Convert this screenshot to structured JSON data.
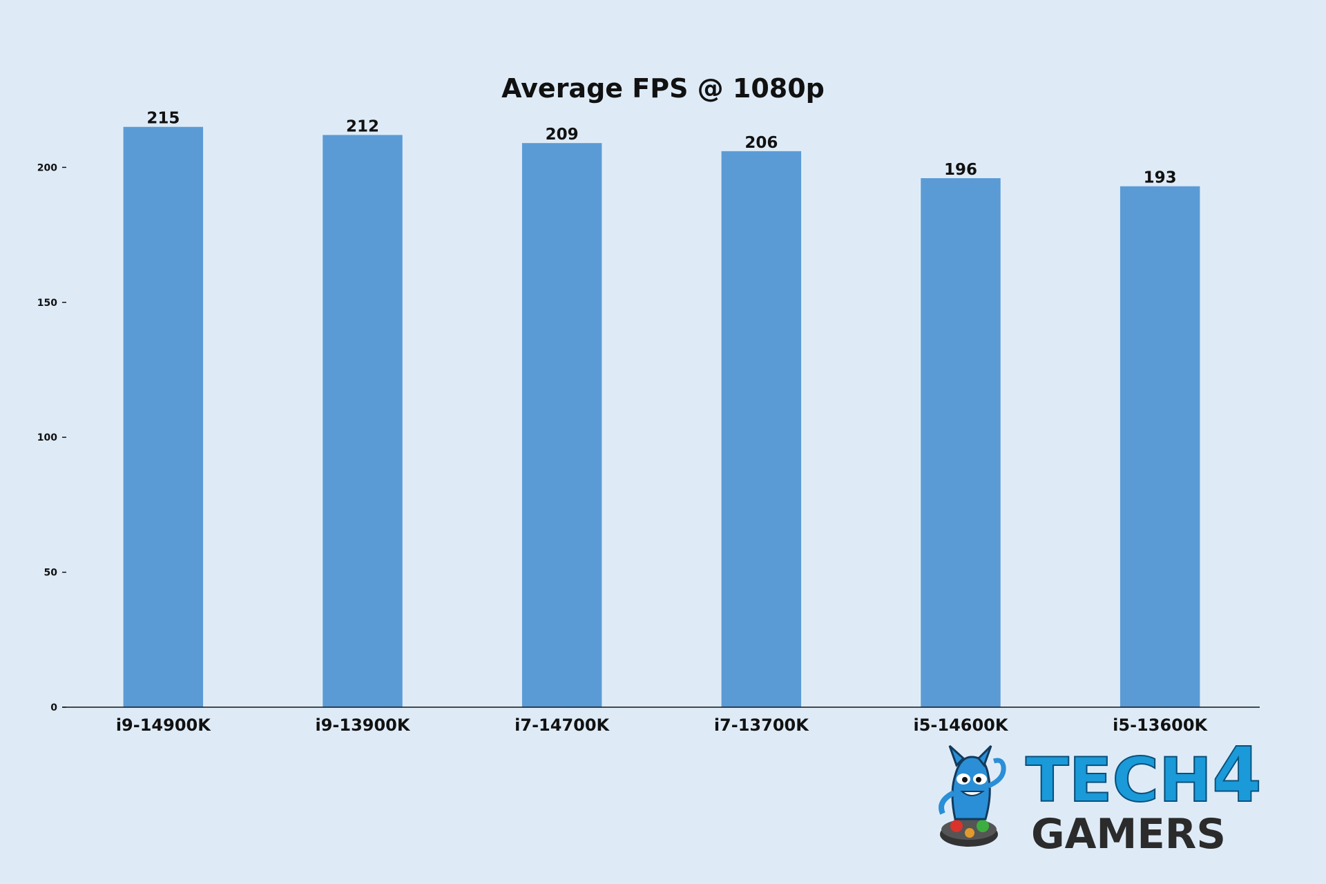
{
  "chart_data": {
    "type": "bar",
    "title": "Average FPS @ 1080p",
    "xlabel": "",
    "ylabel": "",
    "categories": [
      "i9-14900K",
      "i9-13900K",
      "i7-14700K",
      "i7-13700K",
      "i5-14600K",
      "i5-13600K"
    ],
    "values": [
      215,
      212,
      209,
      206,
      196,
      193
    ],
    "ylim": [
      0,
      218
    ],
    "yticks": [
      0,
      50,
      100,
      150,
      200
    ],
    "grid": false,
    "legend": "none",
    "bar_color": "#5b9bd5"
  },
  "watermark": {
    "line1": "TECH",
    "line2": "4",
    "line3": "GAMERS"
  },
  "colors": {
    "background": "#deebf7",
    "logo_blue": "#1a9ad9",
    "logo_dark": "#2b2b2b"
  }
}
